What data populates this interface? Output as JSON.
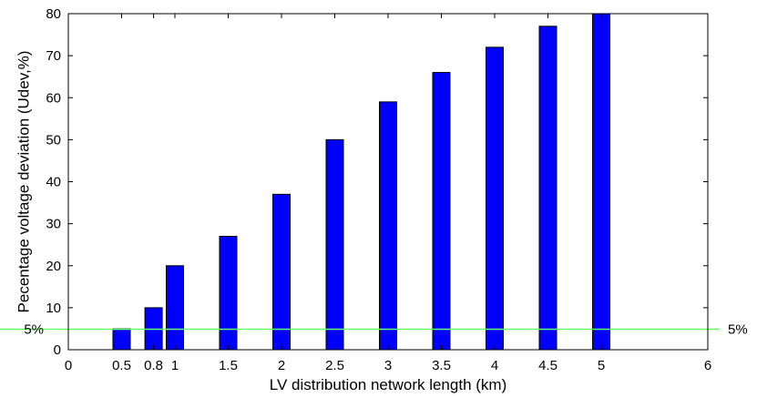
{
  "chart_data": {
    "type": "bar",
    "x": [
      0.5,
      0.8,
      1,
      1.5,
      2,
      2.5,
      3,
      3.5,
      4,
      4.5,
      5
    ],
    "values": [
      5,
      10,
      20,
      27,
      37,
      50,
      59,
      66,
      72,
      77,
      80
    ],
    "xlabel": "LV distribution network length (km)",
    "ylabel": "Pecentage voltage deviation (Udev,%)",
    "xlim": [
      0,
      6
    ],
    "ylim": [
      0,
      80
    ],
    "xticks": [
      0,
      0.5,
      0.8,
      1,
      1.5,
      2,
      2.5,
      3,
      3.5,
      4,
      4.5,
      5,
      6
    ],
    "xtick_labels": [
      "0",
      "0.5",
      "0.8",
      "1",
      "1.5",
      "2",
      "2.5",
      "3",
      "3.5",
      "4",
      "4.5",
      "5",
      "6"
    ],
    "yticks": [
      0,
      10,
      20,
      30,
      40,
      50,
      60,
      70,
      80
    ],
    "ytick_labels": [
      "0",
      "10",
      "20",
      "30",
      "40",
      "50",
      "60",
      "70",
      "80"
    ],
    "bar_color": "#0000ff",
    "reference_line": {
      "value": 5,
      "label_left": "5%",
      "label_right": "5%",
      "color": "#66ff66"
    },
    "grid": false
  }
}
